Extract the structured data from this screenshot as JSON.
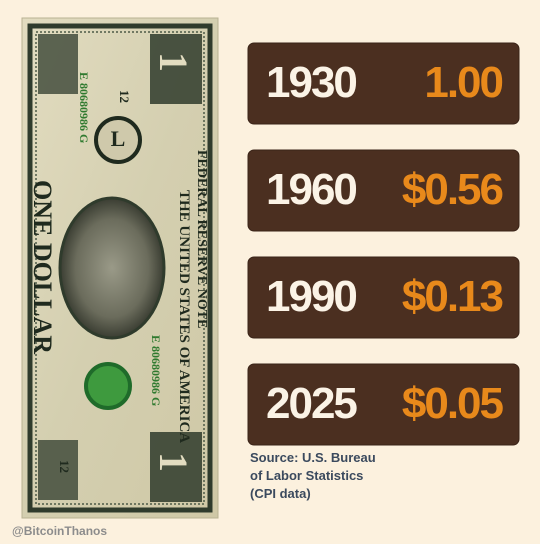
{
  "bill": {
    "top_text": "FEDERAL RESERVE NOTE",
    "country": "THE UNITED STATES OF AMERICA",
    "denomination": "ONE DOLLAR",
    "serial": "E 80680986 G",
    "district_letter": "L",
    "district_number": "12",
    "corner": "1"
  },
  "rows": [
    {
      "year": "1930",
      "value": "1.00"
    },
    {
      "year": "1960",
      "value": "$0.56"
    },
    {
      "year": "1990",
      "value": "$0.13"
    },
    {
      "year": "2025",
      "value": "$0.05"
    }
  ],
  "source": [
    "Source: U.S. Bureau",
    "of Labor Statistics",
    "(CPI data)"
  ],
  "credit": "@BitcoinThanos"
}
